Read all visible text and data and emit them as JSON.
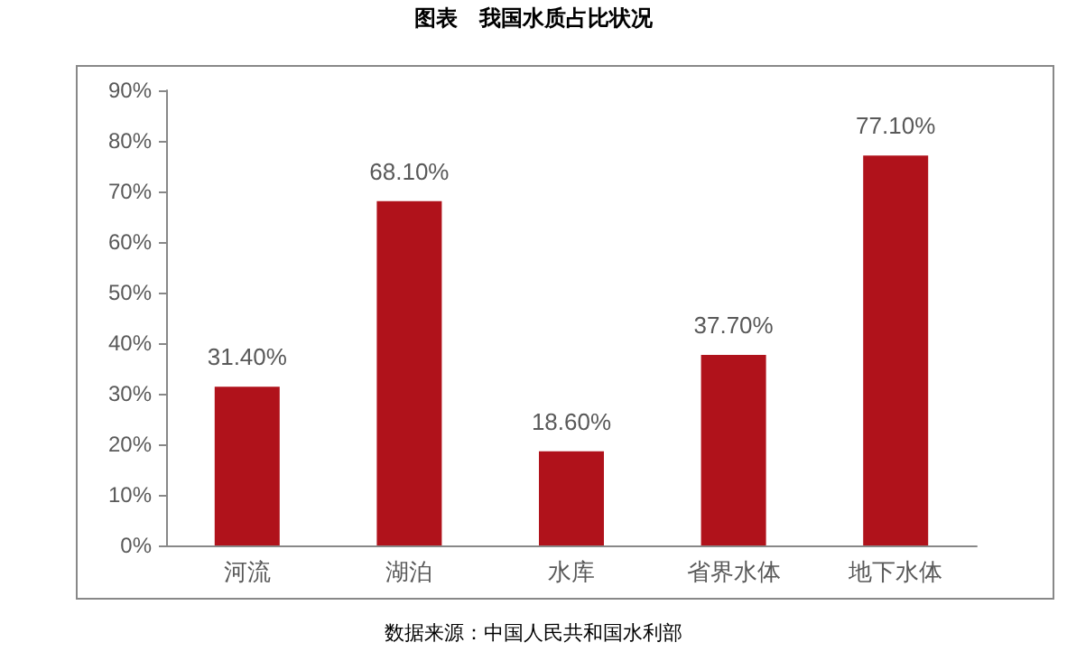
{
  "chart_data": {
    "type": "bar",
    "title": "图表　我国水质占比状况",
    "annotations": [
      "数据来源：中国人民共和国水利部"
    ],
    "categories": [
      "河流",
      "湖泊",
      "水库",
      "省界水体",
      "地下水体"
    ],
    "values": [
      31.4,
      68.1,
      18.6,
      37.7,
      77.1
    ],
    "value_labels": [
      "31.40%",
      "68.10%",
      "18.60%",
      "37.70%",
      "77.10%"
    ],
    "color": "#b0121b",
    "ylim": [
      0,
      90
    ],
    "yticks": [
      {
        "value": 0,
        "label": "0%"
      },
      {
        "value": 10,
        "label": "10%"
      },
      {
        "value": 20,
        "label": "20%"
      },
      {
        "value": 30,
        "label": "30%"
      },
      {
        "value": 40,
        "label": "40%"
      },
      {
        "value": 50,
        "label": "50%"
      },
      {
        "value": 60,
        "label": "60%"
      },
      {
        "value": 70,
        "label": "70%"
      },
      {
        "value": 80,
        "label": "80%"
      },
      {
        "value": 90,
        "label": "90%"
      }
    ],
    "grid": false
  }
}
